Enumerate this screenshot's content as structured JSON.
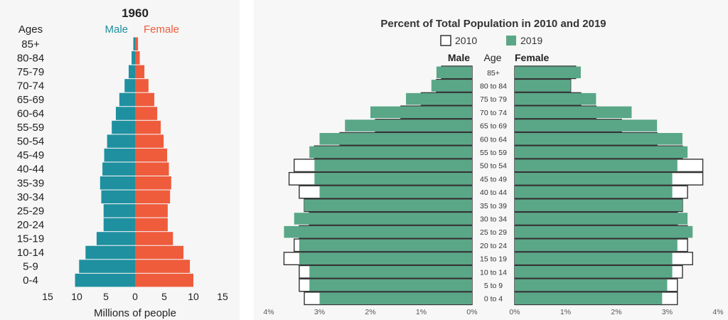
{
  "colors": {
    "male_1960": "#1f90a0",
    "female_1960": "#ee5c3c",
    "fill_2019": "#5aa788",
    "outline_2010": "#333333",
    "box_2010": "#ffffff"
  },
  "left": {
    "title": "1960",
    "ages_header": "Ages",
    "male_label": "Male",
    "female_label": "Female",
    "xlabel": "Millions of people",
    "tick_labels": [
      "15",
      "10",
      "5",
      "0",
      "5",
      "10",
      "15"
    ]
  },
  "right": {
    "title": "Percent of Total Population in 2010 and 2019",
    "legend_2010": "2010",
    "legend_2019": "2019",
    "male_header": "Male",
    "age_header": "Age",
    "female_header": "Female",
    "male_ticks": [
      "4%",
      "3%",
      "2%",
      "1%",
      "0%"
    ],
    "female_ticks": [
      "0%",
      "1%",
      "2%",
      "3%",
      "4%"
    ]
  },
  "chart_data": [
    {
      "type": "bar",
      "title": "1960",
      "xlabel": "Millions of people",
      "ylabel": "Ages",
      "xlim": [
        -15,
        15
      ],
      "categories": [
        "85+",
        "80-84",
        "75-79",
        "70-74",
        "65-69",
        "60-64",
        "55-59",
        "50-54",
        "45-49",
        "40-44",
        "35-39",
        "30-34",
        "25-29",
        "20-24",
        "15-19",
        "10-14",
        "5-9",
        "0-4"
      ],
      "series": [
        {
          "name": "Male",
          "values": [
            0.3,
            0.6,
            1.1,
            1.8,
            2.7,
            3.3,
            4.0,
            4.8,
            5.3,
            5.6,
            6.0,
            5.8,
            5.4,
            5.4,
            6.6,
            8.5,
            9.6,
            10.3
          ]
        },
        {
          "name": "Female",
          "values": [
            0.5,
            0.8,
            1.6,
            2.3,
            3.3,
            3.8,
            4.4,
            4.9,
            5.5,
            5.8,
            6.2,
            6.0,
            5.6,
            5.6,
            6.5,
            8.3,
            9.4,
            10.0
          ]
        }
      ]
    },
    {
      "type": "bar",
      "title": "Percent of Total Population in 2010 and 2019",
      "ylabel": "Age",
      "xlim": [
        -4,
        4
      ],
      "categories": [
        "85+",
        "80 to 84",
        "75 to 79",
        "70 to 74",
        "65 to 69",
        "60 to 64",
        "55 to 59",
        "50 to 54",
        "45 to 49",
        "40 to 44",
        "35 to 39",
        "30 to 34",
        "25 to 29",
        "20 to 24",
        "15 to 19",
        "10 to 14",
        "5 to 9",
        "0 to 4"
      ],
      "series": [
        {
          "name": "2010 Male",
          "values": [
            0.6,
            0.7,
            1.0,
            1.4,
            1.9,
            2.6,
            3.1,
            3.5,
            3.6,
            3.4,
            3.3,
            3.2,
            3.4,
            3.5,
            3.7,
            3.4,
            3.4,
            3.3
          ]
        },
        {
          "name": "2019 Male",
          "values": [
            0.7,
            0.8,
            1.3,
            2.0,
            2.5,
            3.0,
            3.2,
            3.1,
            3.1,
            3.0,
            3.3,
            3.5,
            3.7,
            3.4,
            3.4,
            3.2,
            3.2,
            3.0
          ]
        },
        {
          "name": "2010 Female",
          "values": [
            1.2,
            1.1,
            1.3,
            1.6,
            2.1,
            2.8,
            3.3,
            3.7,
            3.7,
            3.4,
            3.3,
            3.2,
            3.4,
            3.4,
            3.5,
            3.3,
            3.2,
            3.2
          ]
        },
        {
          "name": "2019 Female",
          "values": [
            1.3,
            1.1,
            1.6,
            2.3,
            2.8,
            3.3,
            3.4,
            3.2,
            3.1,
            3.1,
            3.3,
            3.4,
            3.5,
            3.2,
            3.1,
            3.1,
            3.0,
            2.9
          ]
        }
      ]
    }
  ]
}
